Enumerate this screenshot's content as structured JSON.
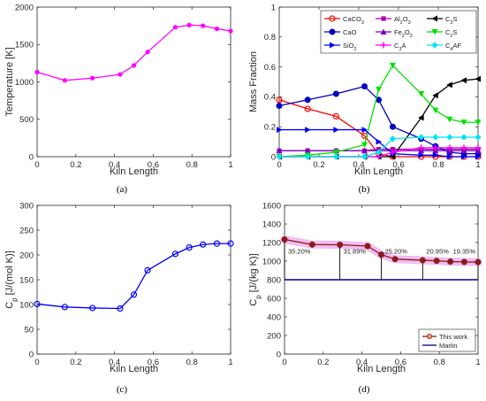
{
  "chart_data": [
    {
      "type": "line",
      "xlabel": "Kiln Length",
      "ylabel": "Temperature [K]",
      "xlim": [
        0,
        1
      ],
      "ylim": [
        0,
        2000
      ],
      "xticks": [
        "0",
        "0.2",
        "0.4",
        "0.6",
        "0.8",
        "1"
      ],
      "yticks": [
        "0",
        "500",
        "1000",
        "1500",
        "2000"
      ],
      "caption": "(a)",
      "grid": false,
      "series": [
        {
          "color": "#ff00ff",
          "x": [
            0,
            0.143,
            0.286,
            0.429,
            0.5,
            0.571,
            0.714,
            0.786,
            0.857,
            0.929,
            1.0
          ],
          "y": [
            1130,
            1020,
            1050,
            1100,
            1220,
            1400,
            1730,
            1760,
            1750,
            1710,
            1680
          ]
        }
      ]
    },
    {
      "type": "line",
      "xlabel": "Kiln Length",
      "ylabel": "Mass Fraction",
      "xlim": [
        0,
        1
      ],
      "ylim": [
        0,
        1
      ],
      "xticks": [
        "0",
        "0.2",
        "0.4",
        "0.6",
        "0.8",
        "1"
      ],
      "yticks": [
        "0",
        "0.2",
        "0.4",
        "0.6",
        "0.8",
        "1"
      ],
      "caption": "(b)",
      "grid": false,
      "legend_position": "top-right",
      "series": [
        {
          "name": "CaCO",
          "sub": "3",
          "color": "#ff0000",
          "marker": "circle",
          "x": [
            0,
            0.143,
            0.286,
            0.429,
            0.5,
            0.571,
            0.714,
            0.786,
            0.857,
            0.929,
            1.0
          ],
          "y": [
            0.38,
            0.32,
            0.27,
            0.14,
            0.02,
            0.0,
            0.0,
            0.0,
            0.0,
            0.0,
            0.0
          ]
        },
        {
          "name": "Al",
          "sub": "2",
          "name2": "O",
          "sub2": "3",
          "color": "#b000b0",
          "marker": "square",
          "x": [
            0,
            0.143,
            0.286,
            0.429,
            0.5,
            0.571,
            0.714,
            0.786,
            0.857,
            0.929,
            1.0
          ],
          "y": [
            0.04,
            0.04,
            0.04,
            0.04,
            0.05,
            0.05,
            0.05,
            0.05,
            0.05,
            0.05,
            0.05
          ]
        },
        {
          "name": "C",
          "sub": "3",
          "name2": "S",
          "color": "#000000",
          "marker": "triangle-left",
          "x": [
            0,
            0.143,
            0.286,
            0.429,
            0.5,
            0.571,
            0.714,
            0.786,
            0.857,
            0.929,
            1.0
          ],
          "y": [
            0.0,
            0.0,
            0.0,
            0.0,
            0.0,
            0.0,
            0.26,
            0.41,
            0.48,
            0.51,
            0.52
          ]
        },
        {
          "name": "CaO",
          "color": "#0000c0",
          "marker": "circle-filled",
          "x": [
            0,
            0.143,
            0.286,
            0.429,
            0.5,
            0.571,
            0.714,
            0.786,
            0.857,
            0.929,
            1.0
          ],
          "y": [
            0.34,
            0.38,
            0.42,
            0.47,
            0.38,
            0.2,
            0.12,
            0.07,
            0.03,
            0.02,
            0.02
          ]
        },
        {
          "name": "Fe",
          "sub": "2",
          "name2": "O",
          "sub2": "3",
          "color": "#7a00c0",
          "marker": "triangle-up",
          "x": [
            0,
            0.143,
            0.286,
            0.429,
            0.5,
            0.571,
            0.714,
            0.786,
            0.857,
            0.929,
            1.0
          ],
          "y": [
            0.04,
            0.04,
            0.04,
            0.04,
            0.04,
            0.04,
            0.04,
            0.04,
            0.04,
            0.04,
            0.04
          ]
        },
        {
          "name": "C",
          "sub": "2",
          "name2": "S",
          "color": "#00e000",
          "marker": "triangle-down",
          "x": [
            0,
            0.143,
            0.286,
            0.429,
            0.5,
            0.571,
            0.714,
            0.786,
            0.857,
            0.929,
            1.0
          ],
          "y": [
            0.0,
            0.01,
            0.03,
            0.08,
            0.45,
            0.61,
            0.42,
            0.31,
            0.25,
            0.23,
            0.23
          ]
        },
        {
          "name": "SiO",
          "sub": "2",
          "color": "#0000ff",
          "marker": "triangle-right",
          "x": [
            0,
            0.143,
            0.286,
            0.429,
            0.5,
            0.571,
            0.714,
            0.786,
            0.857,
            0.929,
            1.0
          ],
          "y": [
            0.18,
            0.18,
            0.18,
            0.18,
            0.1,
            0.02,
            0.01,
            0.01,
            0.0,
            0.0,
            0.0
          ]
        },
        {
          "name": "C",
          "sub": "3",
          "name2": "A",
          "color": "#ff00ff",
          "marker": "plus",
          "x": [
            0,
            0.143,
            0.286,
            0.429,
            0.5,
            0.571,
            0.714,
            0.786,
            0.857,
            0.929,
            1.0
          ],
          "y": [
            0.0,
            0.0,
            0.0,
            0.0,
            0.0,
            0.03,
            0.06,
            0.06,
            0.06,
            0.06,
            0.06
          ]
        },
        {
          "name": "C",
          "sub": "4",
          "name2": "AF",
          "color": "#00e5ee",
          "marker": "diamond",
          "x": [
            0,
            0.143,
            0.286,
            0.429,
            0.5,
            0.571,
            0.714,
            0.786,
            0.857,
            0.929,
            1.0
          ],
          "y": [
            0.0,
            0.0,
            0.0,
            0.0,
            0.03,
            0.12,
            0.13,
            0.13,
            0.13,
            0.13,
            0.13
          ]
        }
      ]
    },
    {
      "type": "line",
      "xlabel": "Kiln Length",
      "ylabel_main": "C",
      "ylabel_sub": "p",
      "ylabel_rest": " [J/(mol K)]",
      "xlim": [
        0,
        1
      ],
      "ylim": [
        0,
        300
      ],
      "xticks": [
        "0",
        "0.2",
        "0.4",
        "0.6",
        "0.8",
        "1"
      ],
      "yticks": [
        "0",
        "50",
        "100",
        "150",
        "200",
        "250",
        "300"
      ],
      "caption": "(c)",
      "grid": false,
      "series": [
        {
          "color": "#0000ff",
          "marker": "circle",
          "x": [
            0,
            0.143,
            0.286,
            0.429,
            0.5,
            0.571,
            0.714,
            0.786,
            0.857,
            0.929,
            1.0
          ],
          "y": [
            101,
            95,
            93,
            92,
            120,
            169,
            202,
            215,
            221,
            223,
            223
          ]
        }
      ]
    },
    {
      "type": "line",
      "xlabel": "Kiln Length",
      "ylabel_main": "C",
      "ylabel_sub": "p",
      "ylabel_rest": " [J/(kg K)]",
      "xlim": [
        0,
        1
      ],
      "ylim": [
        0,
        1600
      ],
      "xticks": [
        "0",
        "0.2",
        "0.4",
        "0.6",
        "0.8",
        "1"
      ],
      "yticks": [
        "0",
        "200",
        "400",
        "600",
        "800",
        "1000",
        "1200",
        "1400",
        "1600"
      ],
      "caption": "(d)",
      "grid": false,
      "legend_position": "bottom-right",
      "series": [
        {
          "name": "This work",
          "color": "#8b1a1a",
          "marker": "circle-filled",
          "band_color": "#f0b0f0",
          "x": [
            0,
            0.143,
            0.286,
            0.429,
            0.5,
            0.571,
            0.714,
            0.786,
            0.857,
            0.929,
            1.0
          ],
          "y": [
            1233,
            1178,
            1176,
            1162,
            1070,
            1022,
            1010,
            1003,
            995,
            992,
            990
          ]
        },
        {
          "name": "Marlin",
          "color": "#000080",
          "marker": "none",
          "x": [
            0,
            1
          ],
          "y": [
            800,
            800
          ]
        }
      ],
      "annotations": [
        {
          "x": 0,
          "text": "35.20%"
        },
        {
          "x": 0.286,
          "text": "31.89%"
        },
        {
          "x": 0.5,
          "text": "25.20%"
        },
        {
          "x": 0.714,
          "text": "20.95%"
        },
        {
          "x": 1.0,
          "text": "19.35%"
        }
      ]
    }
  ]
}
